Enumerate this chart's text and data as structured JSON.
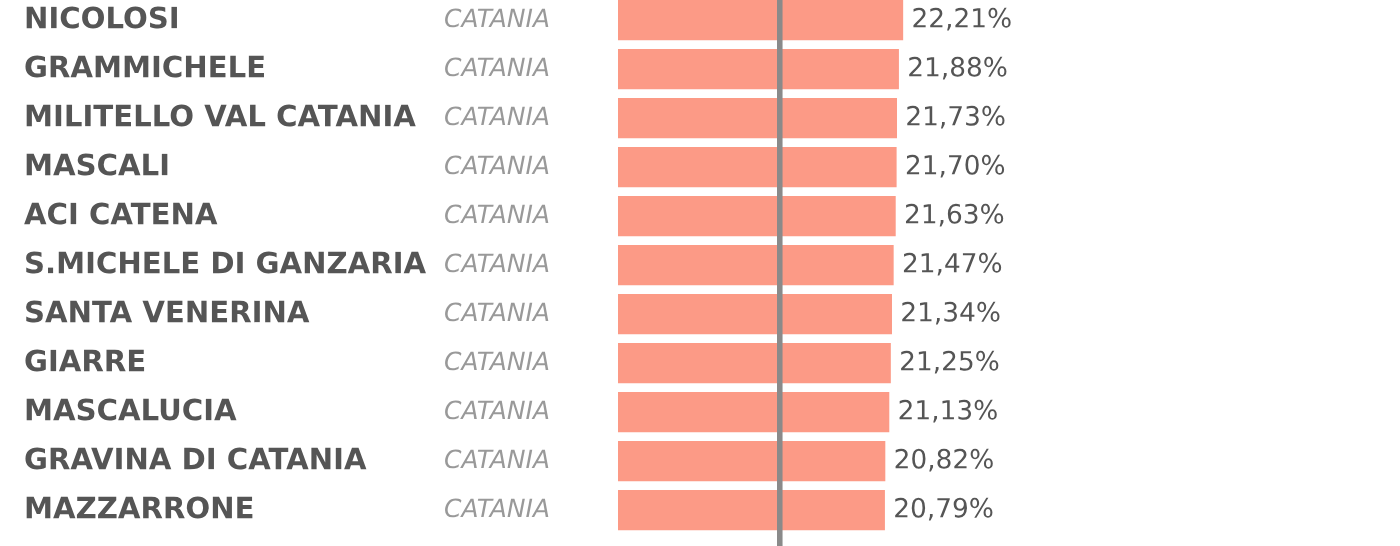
{
  "chart_data": {
    "type": "bar",
    "orientation": "horizontal",
    "categories": [
      "NICOLOSI",
      "GRAMMICHELE",
      "MILITELLO VAL CATANIA",
      "MASCALI",
      "ACI CATENA",
      "S.MICHELE DI GANZARIA",
      "SANTA VENERINA",
      "GIARRE",
      "MASCALUCIA",
      "GRAVINA DI CATANIA",
      "MAZZARRONE"
    ],
    "values": [
      22.21,
      21.88,
      21.73,
      21.7,
      21.63,
      21.47,
      21.34,
      21.25,
      21.13,
      20.82,
      20.79
    ],
    "value_labels": [
      "22,21%",
      "21,88%",
      "21,73%",
      "21,70%",
      "21,63%",
      "21,47%",
      "21,34%",
      "21,25%",
      "21,13%",
      "20,82%",
      "20,79%"
    ],
    "color": "#fc9a86",
    "annotations": [
      "CATANIA",
      "CATANIA",
      "CATANIA",
      "CATANIA",
      "CATANIA",
      "CATANIA",
      "CATANIA",
      "CATANIA",
      "CATANIA",
      "CATANIA",
      "CATANIA"
    ],
    "ref_lines": [
      {
        "axis": "x",
        "value": 12.6,
        "color": "#8a8a8a"
      }
    ]
  }
}
